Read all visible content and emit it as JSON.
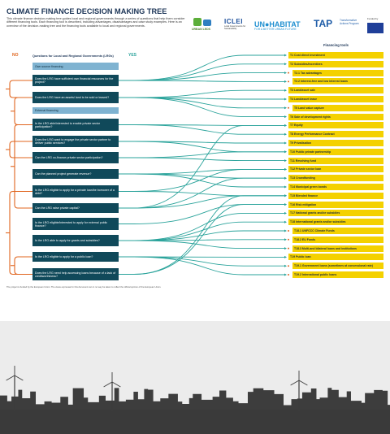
{
  "header": {
    "title": "CLIMATE FINANCE DECISION MAKING TREE",
    "description": "This climate finance decision-making tree guides local and regional governments through a series of questions that help them consider different financing tools. Each financing tool is described, including advantages, disadvantages and case study examples. Here is an overview of the decision-making tree and the financing tools available to local and regional governments.",
    "logos": {
      "urban_leds": "URBAN LEDS",
      "iclei": "ICLEI",
      "iclei_tagline": "Local Governments for Sustainability",
      "unhabitat": "UN●HABITAT",
      "unhabitat_tagline": "FOR A BETTER URBAN FUTURE",
      "tap": "TAP",
      "tap_tagline": "Transformative Actions Program",
      "funded_by": "Funded by"
    }
  },
  "columns": {
    "no": "NO",
    "questions": "Questions for Local and Regional Governments (LRGs)",
    "yes": "YES",
    "tools": "Financing tools"
  },
  "questions": [
    "Own source financing",
    "Does the LRG have sufficient own financial resources for the project?",
    "Does the LRG have an assets/ land to be sold or leased?",
    "External financing",
    "Is the LRG able/interested to enable private sector participation?",
    "Does the LRG want to engage the private sector partner to deliver public services?",
    "Can the LRG co-finance private sector participation?",
    "Can the planned project generate revenue?",
    "Is the LRG eligible to apply for a private loan/be borrower of a debt?",
    "Can the LRG raise private capital?",
    "Is the LRG eligible/interested to apply for external public finance?",
    "Is the LRG able to apply for grants and subsidies?",
    "Is the LRG eligible to apply for a public loan?",
    "Does the LRG need help accessing loans because of a lack of creditworthiness?"
  ],
  "tools": [
    "T1 Cost direct investment",
    "T2 Subsidies/incentives",
    "T2.1 Tax advantages",
    "T2.2 Interest-free and low interest loans",
    "T3 Land/asset sale",
    "T4 Land/asset lease",
    "T5 Land value capture",
    "T6 Sale of development rights",
    "T7 Equity",
    "T8 Energy Performance Contract",
    "T9 Privatisation",
    "T10 Public private partnership",
    "T11 Revolving fund",
    "T12 Private sector loan",
    "T13 Crowdfunding",
    "T14 Municipal green bonds",
    "T15 Blended finance",
    "T16 Risk mitigation",
    "T17 National grants and/or subsidies",
    "T18 International grants and/or subsidies",
    "T18.1 UNFCCC Climate Funds",
    "T18.2 EU Funds",
    "T18.3 Multi-and bilateral loans and institutions",
    "T19 Public loan",
    "T19.1 Government loans (sometimes at concessional rate)",
    "T19.2 International public loans"
  ],
  "footer": "The project is funded by the European Union. The views expressed in this document can in no way be taken to reflect the official opinion of the European Union."
}
